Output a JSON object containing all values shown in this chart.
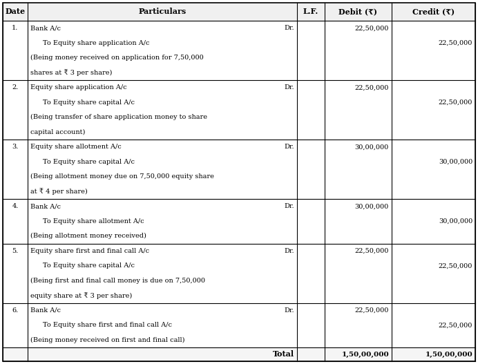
{
  "columns": [
    "Date",
    "Particulars",
    "L.F.",
    "Debit (₹)",
    "Credit (₹)"
  ],
  "bg_color": "#ffffff",
  "border_color": "#000000",
  "header_bg": "#f0f0f0",
  "rows": [
    {
      "date": "1.",
      "lines": [
        {
          "text": "Bank A/c",
          "indent": 0,
          "dr": true
        },
        {
          "text": "To Equity share application A/c",
          "indent": 1,
          "dr": false
        },
        {
          "text": "(Being money received on application for 7,50,000",
          "indent": 0,
          "dr": false
        },
        {
          "text": "shares at ₹ 3 per share)",
          "indent": 0,
          "dr": false
        }
      ],
      "debit": "22,50,000",
      "debit_line": 0,
      "credit": "22,50,000",
      "credit_line": 1
    },
    {
      "date": "2.",
      "lines": [
        {
          "text": "Equity share application A/c",
          "indent": 0,
          "dr": true
        },
        {
          "text": "To Equity share capital A/c",
          "indent": 1,
          "dr": false
        },
        {
          "text": "(Being transfer of share application money to share",
          "indent": 0,
          "dr": false
        },
        {
          "text": "capital account)",
          "indent": 0,
          "dr": false
        }
      ],
      "debit": "22,50,000",
      "debit_line": 0,
      "credit": "22,50,000",
      "credit_line": 1
    },
    {
      "date": "3.",
      "lines": [
        {
          "text": "Equity share allotment A/c",
          "indent": 0,
          "dr": true
        },
        {
          "text": "To Equity share capital A/c",
          "indent": 1,
          "dr": false
        },
        {
          "text": "(Being allotment money due on 7,50,000 equity share",
          "indent": 0,
          "dr": false
        },
        {
          "text": "at ₹ 4 per share)",
          "indent": 0,
          "dr": false
        }
      ],
      "debit": "30,00,000",
      "debit_line": 0,
      "credit": "30,00,000",
      "credit_line": 1
    },
    {
      "date": "4.",
      "lines": [
        {
          "text": "Bank A/c",
          "indent": 0,
          "dr": true
        },
        {
          "text": "To Equity share allotment A/c",
          "indent": 1,
          "dr": false
        },
        {
          "text": "(Being allotment money received)",
          "indent": 0,
          "dr": false
        }
      ],
      "debit": "30,00,000",
      "debit_line": 0,
      "credit": "30,00,000",
      "credit_line": 1
    },
    {
      "date": "5.",
      "lines": [
        {
          "text": "Equity share first and final call A/c",
          "indent": 0,
          "dr": true
        },
        {
          "text": "To Equity share capital A/c",
          "indent": 1,
          "dr": false
        },
        {
          "text": "(Being first and final call money is due on 7,50,000",
          "indent": 0,
          "dr": false
        },
        {
          "text": "equity share at ₹ 3 per share)",
          "indent": 0,
          "dr": false
        }
      ],
      "debit": "22,50,000",
      "debit_line": 0,
      "credit": "22,50,000",
      "credit_line": 1
    },
    {
      "date": "6.",
      "lines": [
        {
          "text": "Bank A/c",
          "indent": 0,
          "dr": true
        },
        {
          "text": "To Equity share first and final call A/c",
          "indent": 1,
          "dr": false
        },
        {
          "text": "(Being money received on first and final call)",
          "indent": 0,
          "dr": false
        }
      ],
      "debit": "22,50,000",
      "debit_line": 0,
      "credit": "22,50,000",
      "credit_line": 1
    }
  ],
  "total_debit": "1,50,00,000",
  "total_credit": "1,50,00,000",
  "figsize": [
    6.92,
    5.27
  ],
  "dpi": 100
}
